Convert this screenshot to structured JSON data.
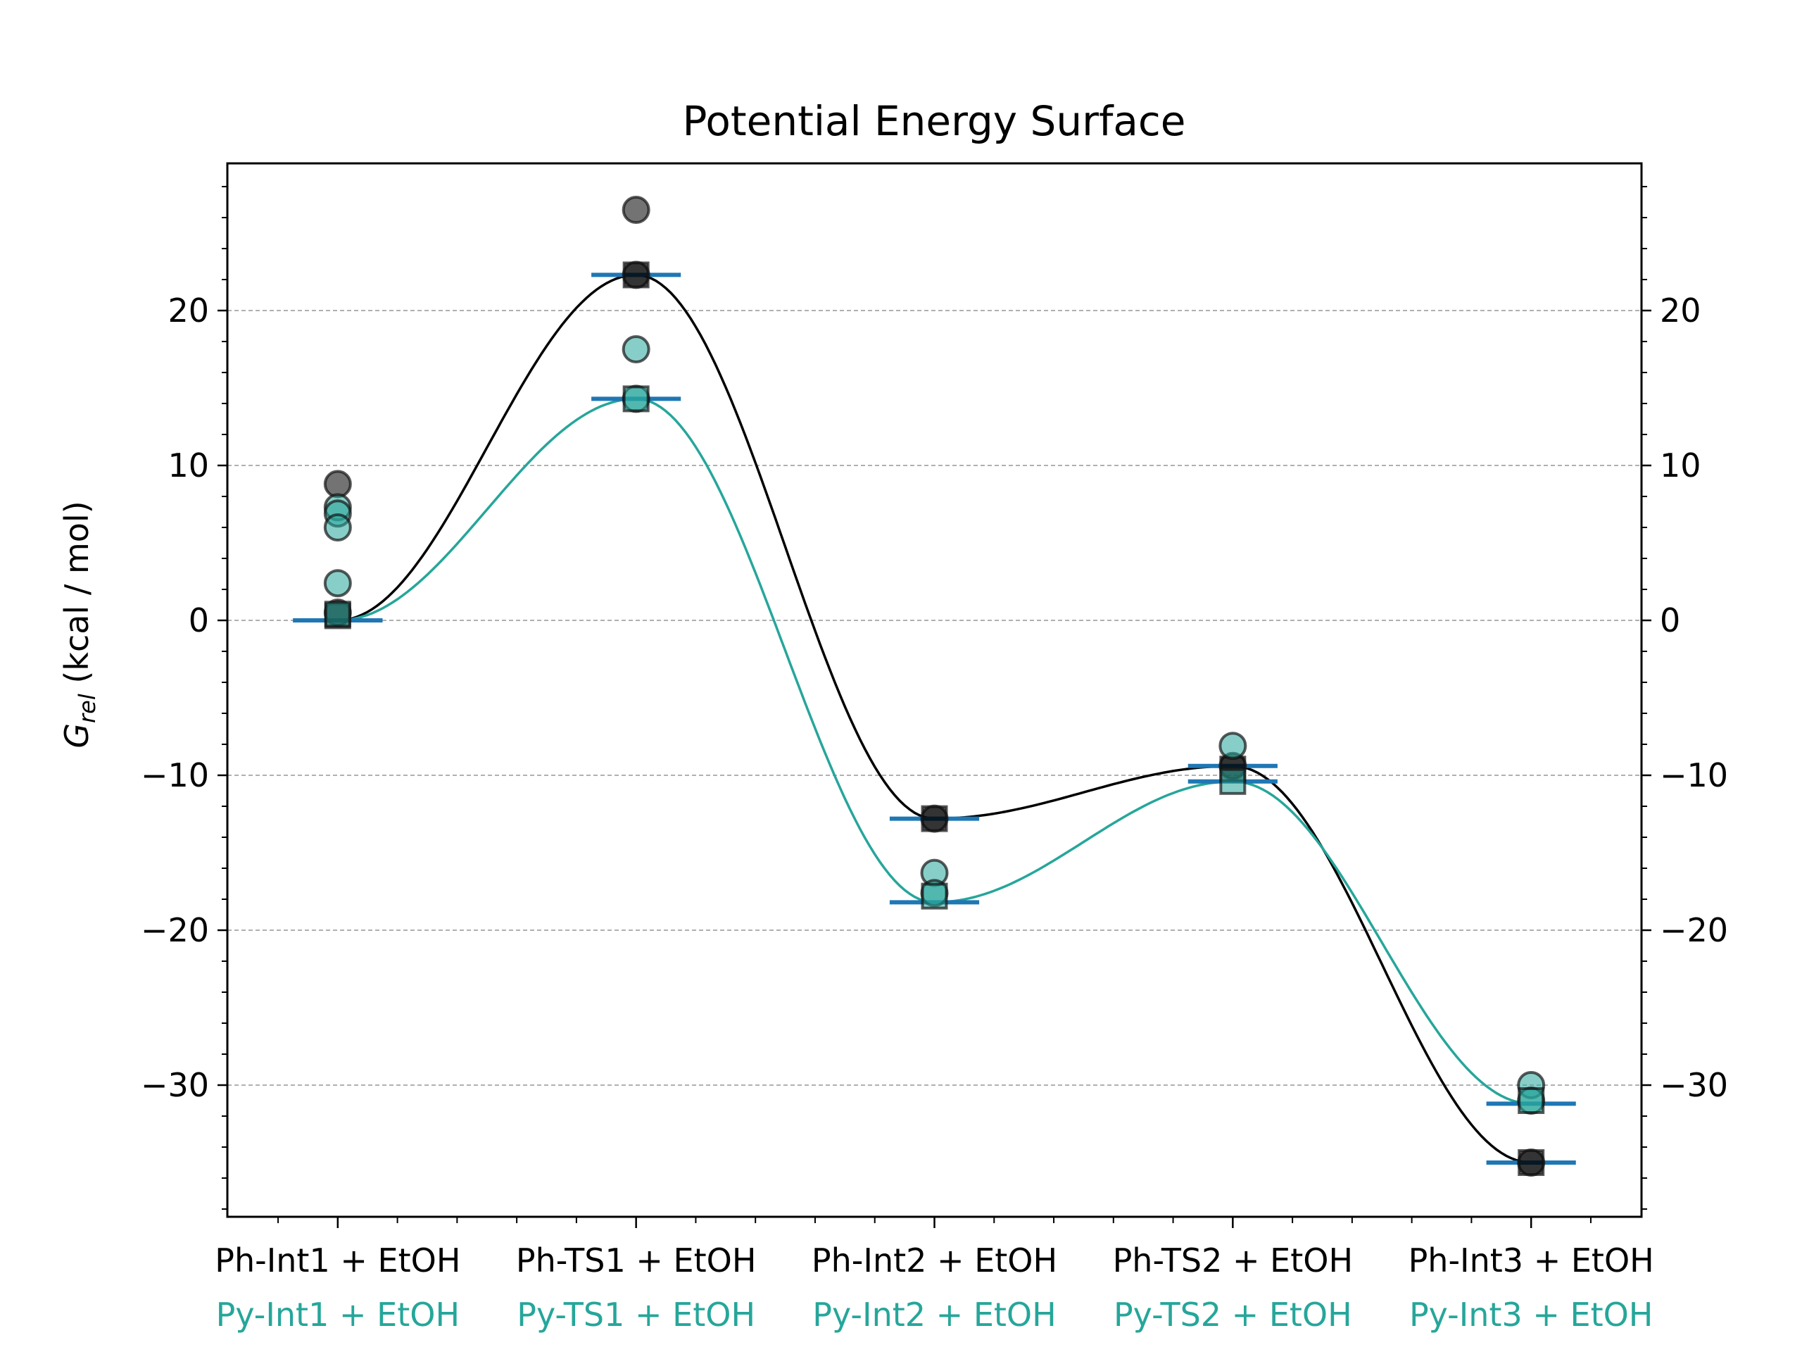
{
  "chart_data": {
    "type": "line",
    "title": "Potential Energy Surface",
    "ylabel": "G_rel (kcal / mol)",
    "ylabel_main": "G",
    "ylabel_sub": "rel",
    "ylabel_rest": " (kcal / mol)",
    "ylim": [
      -38.5,
      29.5
    ],
    "yticks": [
      -30,
      -20,
      -10,
      0,
      10,
      20
    ],
    "ytick_labels": [
      "−30",
      "−20",
      "−10",
      "0",
      "10",
      "20"
    ],
    "xlim": [
      -0.37,
      4.37
    ],
    "x_positions": [
      0,
      1,
      2,
      3,
      4
    ],
    "grid": "horizontal dashed",
    "categories": [
      "Ph-Int1 + EtOH",
      "Ph-TS1 + EtOH",
      "Ph-Int2 + EtOH",
      "Ph-TS2 + EtOH",
      "Ph-Int3 + EtOH"
    ],
    "categories_secondary": [
      "Py-Int1 + EtOH",
      "Py-TS1 + EtOH",
      "Py-Int2 + EtOH",
      "Py-TS2 + EtOH",
      "Py-Int3 + EtOH"
    ],
    "series": [
      {
        "color": "#000000",
        "levels": [
          0.0,
          22.3,
          -12.8,
          -9.4,
          -35.0
        ],
        "scatter": [
          {
            "x": 0,
            "y": 8.8,
            "marker": "circle"
          },
          {
            "x": 0,
            "y": 0.5,
            "marker": "circle"
          },
          {
            "x": 0,
            "y": 0.3,
            "marker": "square"
          },
          {
            "x": 1,
            "y": 26.5,
            "marker": "circle"
          },
          {
            "x": 1,
            "y": 22.3,
            "marker": "circle"
          },
          {
            "x": 1,
            "y": 22.3,
            "marker": "square"
          },
          {
            "x": 2,
            "y": -12.8,
            "marker": "circle"
          },
          {
            "x": 2,
            "y": -12.8,
            "marker": "square"
          },
          {
            "x": 3,
            "y": -9.4,
            "marker": "circle"
          },
          {
            "x": 3,
            "y": -9.6,
            "marker": "square"
          },
          {
            "x": 4,
            "y": -35.0,
            "marker": "circle"
          },
          {
            "x": 4,
            "y": -35.0,
            "marker": "square"
          }
        ]
      },
      {
        "color": "#26a69a",
        "levels": [
          0.0,
          14.3,
          -18.2,
          -10.4,
          -31.2
        ],
        "scatter": [
          {
            "x": 0,
            "y": 7.3,
            "marker": "circle"
          },
          {
            "x": 0,
            "y": 6.9,
            "marker": "circle"
          },
          {
            "x": 0,
            "y": 6.0,
            "marker": "circle"
          },
          {
            "x": 0,
            "y": 2.4,
            "marker": "circle"
          },
          {
            "x": 0,
            "y": 0.4,
            "marker": "square"
          },
          {
            "x": 1,
            "y": 17.5,
            "marker": "circle"
          },
          {
            "x": 1,
            "y": 14.3,
            "marker": "circle"
          },
          {
            "x": 1,
            "y": 14.3,
            "marker": "square"
          },
          {
            "x": 2,
            "y": -16.3,
            "marker": "circle"
          },
          {
            "x": 2,
            "y": -17.6,
            "marker": "circle"
          },
          {
            "x": 2,
            "y": -17.8,
            "marker": "square"
          },
          {
            "x": 3,
            "y": -8.1,
            "marker": "circle"
          },
          {
            "x": 3,
            "y": -10.4,
            "marker": "square"
          },
          {
            "x": 4,
            "y": -30.0,
            "marker": "circle"
          },
          {
            "x": 4,
            "y": -31.0,
            "marker": "circle"
          },
          {
            "x": 4,
            "y": -31.0,
            "marker": "square"
          }
        ]
      }
    ],
    "level_marker_color": "#1f77b4",
    "grid_color": "#b0b0b0"
  }
}
